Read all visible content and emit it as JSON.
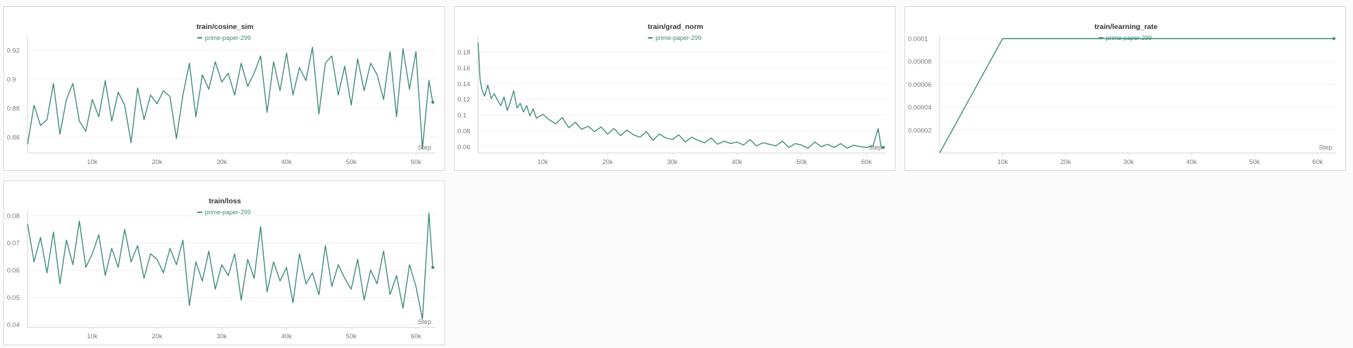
{
  "colors": {
    "series": "#3d8b7a",
    "grid": "#efefef",
    "axis": "#d4d4d4",
    "text": "#777777",
    "title": "#333333"
  },
  "chart_data": [
    {
      "type": "line",
      "title": "train/cosine_sim",
      "legend": "prime-paper-299",
      "xlabel": "Step",
      "xlim": [
        0,
        63000
      ],
      "ylim": [
        0.849,
        0.928
      ],
      "xticks": [
        10000,
        20000,
        30000,
        40000,
        50000,
        60000
      ],
      "xtick_labels": [
        "10k",
        "20k",
        "30k",
        "40k",
        "50k",
        "60k"
      ],
      "yticks": [
        0.86,
        0.88,
        0.9,
        0.92
      ],
      "ytick_labels": [
        "0.86",
        "0.88",
        "0.9",
        "0.92"
      ],
      "series": [
        {
          "name": "prime-paper-299",
          "x": [
            0,
            1000,
            2000,
            3000,
            4000,
            5000,
            6000,
            7000,
            8000,
            9000,
            10000,
            11000,
            12000,
            13000,
            14000,
            15000,
            16000,
            17000,
            18000,
            19000,
            20000,
            21000,
            22000,
            23000,
            24000,
            25000,
            26000,
            27000,
            28000,
            29000,
            30000,
            31000,
            32000,
            33000,
            34000,
            35000,
            36000,
            37000,
            38000,
            39000,
            40000,
            41000,
            42000,
            43000,
            44000,
            45000,
            46000,
            47000,
            48000,
            49000,
            50000,
            51000,
            52000,
            53000,
            54000,
            55000,
            56000,
            57000,
            58000,
            59000,
            60000,
            61000,
            62000,
            62600
          ],
          "y": [
            0.855,
            0.882,
            0.868,
            0.872,
            0.897,
            0.862,
            0.886,
            0.897,
            0.871,
            0.864,
            0.886,
            0.874,
            0.899,
            0.871,
            0.891,
            0.882,
            0.856,
            0.894,
            0.872,
            0.889,
            0.883,
            0.892,
            0.888,
            0.859,
            0.889,
            0.911,
            0.874,
            0.903,
            0.893,
            0.912,
            0.898,
            0.904,
            0.889,
            0.911,
            0.895,
            0.904,
            0.916,
            0.877,
            0.912,
            0.892,
            0.918,
            0.889,
            0.908,
            0.899,
            0.922,
            0.876,
            0.911,
            0.916,
            0.889,
            0.909,
            0.882,
            0.914,
            0.892,
            0.911,
            0.903,
            0.886,
            0.919,
            0.874,
            0.921,
            0.893,
            0.919,
            0.852,
            0.899,
            0.884
          ]
        }
      ]
    },
    {
      "type": "line",
      "title": "train/grad_norm",
      "legend": "prime-paper-299",
      "xlabel": "Step",
      "xlim": [
        0,
        63000
      ],
      "ylim": [
        0.052,
        0.197
      ],
      "xticks": [
        10000,
        20000,
        30000,
        40000,
        50000,
        60000
      ],
      "xtick_labels": [
        "10k",
        "20k",
        "30k",
        "40k",
        "50k",
        "60k"
      ],
      "yticks": [
        0.06,
        0.08,
        0.1,
        0.12,
        0.14,
        0.16,
        0.18
      ],
      "ytick_labels": [
        "0.06",
        "0.08",
        "0.1",
        "0.12",
        "0.14",
        "0.16",
        "0.18"
      ],
      "series": [
        {
          "name": "prime-paper-299",
          "x": [
            0,
            300,
            600,
            1000,
            1500,
            2000,
            2500,
            3000,
            3500,
            4000,
            4500,
            5000,
            5500,
            6000,
            6500,
            7000,
            7500,
            8000,
            8500,
            9000,
            10000,
            11000,
            12000,
            13000,
            14000,
            15000,
            16000,
            17000,
            18000,
            19000,
            20000,
            21000,
            22000,
            23000,
            24000,
            25000,
            26000,
            27000,
            28000,
            29000,
            30000,
            31000,
            32000,
            33000,
            34000,
            35000,
            36000,
            37000,
            38000,
            39000,
            40000,
            41000,
            42000,
            43000,
            44000,
            45000,
            46000,
            47000,
            48000,
            49000,
            50000,
            51000,
            52000,
            53000,
            54000,
            55000,
            56000,
            57000,
            58000,
            59000,
            60000,
            61000,
            61800,
            62300,
            62600
          ],
          "y": [
            0.192,
            0.146,
            0.132,
            0.124,
            0.138,
            0.121,
            0.127,
            0.119,
            0.112,
            0.123,
            0.106,
            0.117,
            0.131,
            0.109,
            0.115,
            0.104,
            0.112,
            0.099,
            0.108,
            0.096,
            0.101,
            0.094,
            0.089,
            0.097,
            0.084,
            0.091,
            0.082,
            0.086,
            0.079,
            0.085,
            0.076,
            0.083,
            0.074,
            0.081,
            0.075,
            0.072,
            0.079,
            0.068,
            0.076,
            0.071,
            0.069,
            0.075,
            0.066,
            0.072,
            0.068,
            0.065,
            0.071,
            0.063,
            0.067,
            0.064,
            0.066,
            0.062,
            0.069,
            0.061,
            0.065,
            0.063,
            0.061,
            0.067,
            0.059,
            0.064,
            0.062,
            0.058,
            0.066,
            0.06,
            0.063,
            0.059,
            0.064,
            0.058,
            0.062,
            0.06,
            0.059,
            0.061,
            0.083,
            0.058,
            0.059
          ]
        }
      ]
    },
    {
      "type": "line",
      "title": "train/learning_rate",
      "legend": "prime-paper-299",
      "xlabel": "Step",
      "xlim": [
        0,
        63000
      ],
      "ylim": [
        0,
        0.0001
      ],
      "xticks": [
        10000,
        20000,
        30000,
        40000,
        50000,
        60000
      ],
      "xtick_labels": [
        "10k",
        "20k",
        "30k",
        "40k",
        "50k",
        "60k"
      ],
      "yticks": [
        2e-05,
        4e-05,
        6e-05,
        8e-05,
        0.0001
      ],
      "ytick_labels": [
        "0.00002",
        "0.00004",
        "0.00006",
        "0.00008",
        "0.0001"
      ],
      "series": [
        {
          "name": "prime-paper-299",
          "x": [
            0,
            10000,
            62600
          ],
          "y": [
            0,
            0.0001,
            0.0001
          ]
        }
      ]
    },
    {
      "type": "line",
      "title": "train/loss",
      "legend": "prime-paper-299",
      "xlabel": "Step",
      "xlim": [
        0,
        63000
      ],
      "ylim": [
        0.039,
        0.081
      ],
      "xticks": [
        10000,
        20000,
        30000,
        40000,
        50000,
        60000
      ],
      "xtick_labels": [
        "10k",
        "20k",
        "30k",
        "40k",
        "50k",
        "60k"
      ],
      "yticks": [
        0.04,
        0.05,
        0.06,
        0.07,
        0.08
      ],
      "ytick_labels": [
        "0.04",
        "0.05",
        "0.06",
        "0.07",
        "0.08"
      ],
      "series": [
        {
          "name": "prime-paper-299",
          "x": [
            0,
            1000,
            2000,
            3000,
            4000,
            5000,
            6000,
            7000,
            8000,
            9000,
            10000,
            11000,
            12000,
            13000,
            14000,
            15000,
            16000,
            17000,
            18000,
            19000,
            20000,
            21000,
            22000,
            23000,
            24000,
            25000,
            26000,
            27000,
            28000,
            29000,
            30000,
            31000,
            32000,
            33000,
            34000,
            35000,
            36000,
            37000,
            38000,
            39000,
            40000,
            41000,
            42000,
            43000,
            44000,
            45000,
            46000,
            47000,
            48000,
            49000,
            50000,
            51000,
            52000,
            53000,
            54000,
            55000,
            56000,
            57000,
            58000,
            59000,
            60000,
            61000,
            62000,
            62600
          ],
          "y": [
            0.077,
            0.063,
            0.072,
            0.059,
            0.074,
            0.055,
            0.071,
            0.062,
            0.078,
            0.061,
            0.066,
            0.073,
            0.058,
            0.068,
            0.061,
            0.075,
            0.063,
            0.069,
            0.057,
            0.066,
            0.064,
            0.059,
            0.068,
            0.062,
            0.071,
            0.047,
            0.063,
            0.056,
            0.067,
            0.053,
            0.062,
            0.058,
            0.066,
            0.049,
            0.064,
            0.057,
            0.076,
            0.052,
            0.063,
            0.056,
            0.061,
            0.048,
            0.066,
            0.055,
            0.059,
            0.051,
            0.069,
            0.054,
            0.062,
            0.057,
            0.053,
            0.064,
            0.049,
            0.06,
            0.055,
            0.067,
            0.051,
            0.058,
            0.046,
            0.062,
            0.054,
            0.042,
            0.081,
            0.061
          ]
        }
      ]
    }
  ]
}
